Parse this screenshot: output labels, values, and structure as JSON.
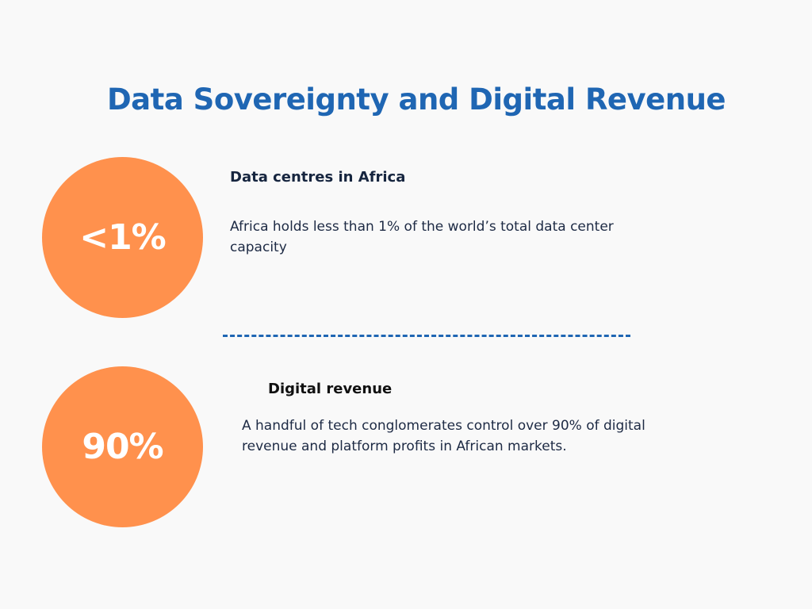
{
  "title": "Data Sovereignty and Digital Revenue",
  "colors": {
    "title": "#1f66b3",
    "accent_circle": "#ff914d",
    "divider": "#1f66b3"
  },
  "stats": [
    {
      "value": "<1%",
      "heading": "Data centres in Africa",
      "body": "Africa holds less than 1% of the world’s total data center capacity"
    },
    {
      "value": "90%",
      "heading": "Digital revenue",
      "body": "A handful of tech conglomerates control over 90% of digital revenue and platform profits in African markets."
    }
  ]
}
